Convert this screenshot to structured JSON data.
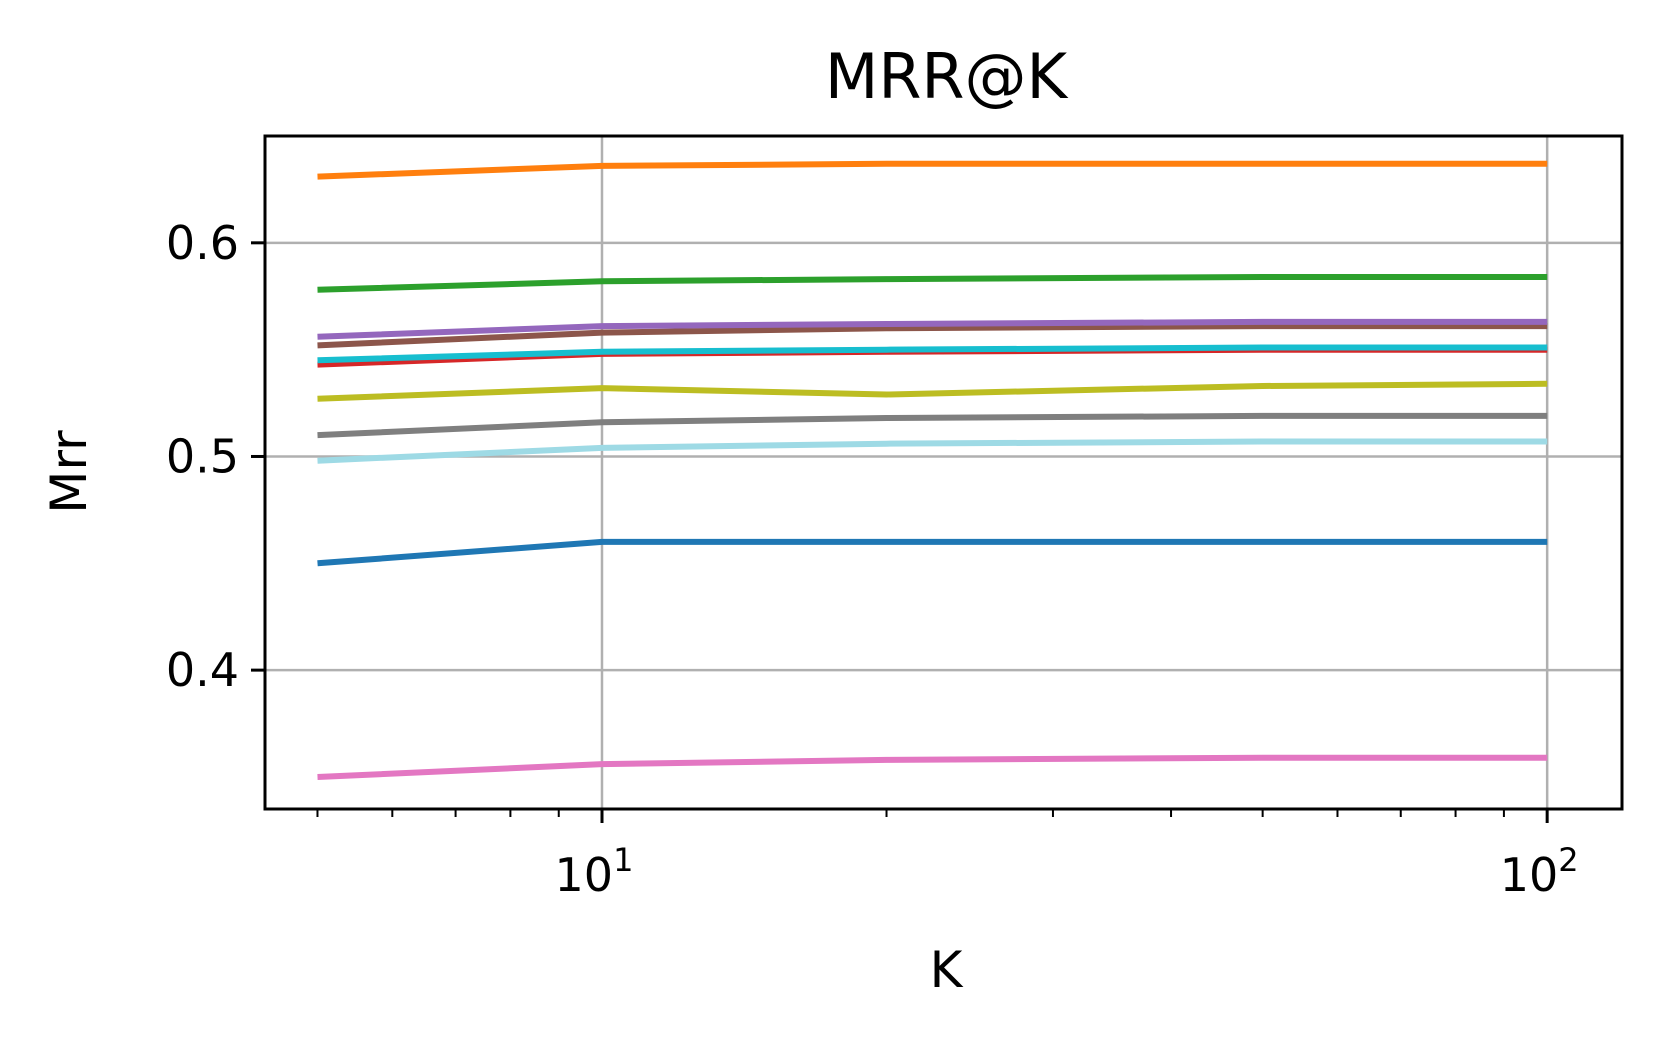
{
  "chart_data": {
    "type": "line",
    "title": "MRR@K",
    "xlabel": "K",
    "ylabel": "Mrr",
    "xscale": "log",
    "xlim": [
      4.4,
      120
    ],
    "ylim": [
      0.335,
      0.65
    ],
    "grid": true,
    "legend": "none",
    "x": [
      5,
      10,
      20,
      50,
      100
    ],
    "x_ticks": [
      {
        "value": 10,
        "base": "10",
        "exp": "1"
      },
      {
        "value": 100,
        "base": "10",
        "exp": "2"
      }
    ],
    "y_ticks": [
      {
        "value": 0.4,
        "label": "0.4"
      },
      {
        "value": 0.5,
        "label": "0.5"
      },
      {
        "value": 0.6,
        "label": "0.6"
      }
    ],
    "series": [
      {
        "color": "#ff7f0e",
        "values": [
          0.631,
          0.636,
          0.637,
          0.637,
          0.637
        ]
      },
      {
        "color": "#2ca02c",
        "values": [
          0.578,
          0.582,
          0.583,
          0.584,
          0.584
        ]
      },
      {
        "color": "#8c564b",
        "values": [
          0.552,
          0.558,
          0.56,
          0.561,
          0.561
        ]
      },
      {
        "color": "#9467bd",
        "values": [
          0.556,
          0.561,
          0.562,
          0.563,
          0.563
        ]
      },
      {
        "color": "#d62728",
        "values": [
          0.543,
          0.548,
          0.549,
          0.55,
          0.55
        ]
      },
      {
        "color": "#17becf",
        "values": [
          0.545,
          0.549,
          0.55,
          0.551,
          0.551
        ]
      },
      {
        "color": "#bcbd22",
        "values": [
          0.527,
          0.532,
          0.529,
          0.533,
          0.534
        ]
      },
      {
        "color": "#7f7f7f",
        "values": [
          0.51,
          0.516,
          0.518,
          0.519,
          0.519
        ]
      },
      {
        "color": "#9edae5",
        "values": [
          0.498,
          0.504,
          0.506,
          0.507,
          0.507
        ]
      },
      {
        "color": "#1f77b4",
        "values": [
          0.45,
          0.46,
          0.46,
          0.46,
          0.46
        ]
      },
      {
        "color": "#e377c2",
        "values": [
          0.35,
          0.356,
          0.358,
          0.359,
          0.359
        ]
      }
    ]
  }
}
